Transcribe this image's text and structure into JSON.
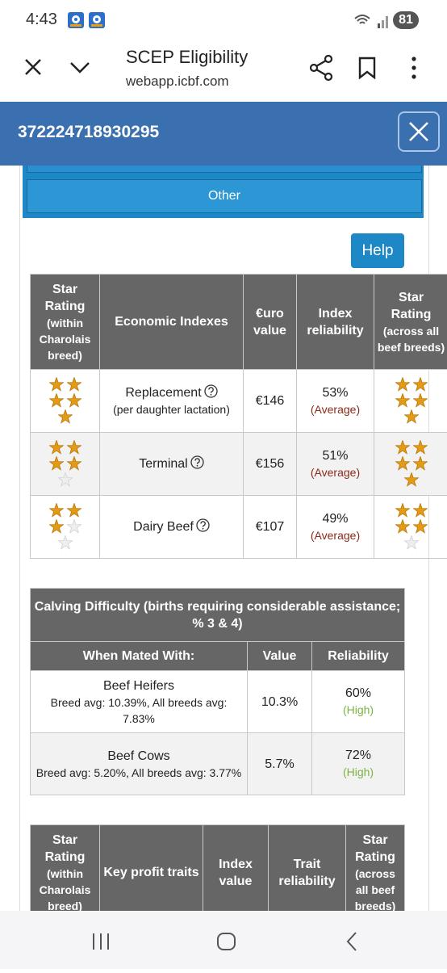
{
  "status": {
    "time": "4:43",
    "battery": "81"
  },
  "browser": {
    "title": "SCEP Eligibility",
    "url": "webapp.icbf.com"
  },
  "header": {
    "id": "372224718930295"
  },
  "tab": "Other",
  "help": "Help",
  "indexes": {
    "headers": [
      {
        "main": "Star Rating",
        "sub": "(within Charolais breed)"
      },
      {
        "main": "Economic Indexes"
      },
      {
        "main": "€uro value"
      },
      {
        "main": "Index reliability"
      },
      {
        "main": "Star Rating",
        "sub": "(across all beef breeds)"
      }
    ],
    "rows": [
      {
        "stars_within": 5,
        "name": "Replacement",
        "note": "(per daughter lactation)",
        "value": "€146",
        "reliability": "53%",
        "reliability_label": "(Average)",
        "stars_across": 5
      },
      {
        "stars_within": 4,
        "name": "Terminal",
        "value": "€156",
        "reliability": "51%",
        "reliability_label": "(Average)",
        "stars_across": 5
      },
      {
        "stars_within": 3,
        "name": "Dairy Beef",
        "value": "€107",
        "reliability": "49%",
        "reliability_label": "(Average)",
        "stars_across": 4
      }
    ]
  },
  "calving": {
    "title": "Calving Difficulty (births requiring considerable assistance; % 3 & 4)",
    "headers": [
      "When Mated With:",
      "Value",
      "Reliability"
    ],
    "rows": [
      {
        "name": "Beef Heifers",
        "note": "Breed avg: 10.39%, All breeds avg: 7.83%",
        "value": "10.3%",
        "reliability": "60%",
        "reliability_label": "(High)"
      },
      {
        "name": "Beef Cows",
        "note": "Breed avg: 5.20%, All breeds avg: 3.77%",
        "value": "5.7%",
        "reliability": "72%",
        "reliability_label": "(High)"
      }
    ]
  },
  "traits": {
    "headers": [
      {
        "main": "Star Rating",
        "sub": "(within Charolais breed)"
      },
      {
        "main": "Key profit traits"
      },
      {
        "main": "Index value"
      },
      {
        "main": "Trait reliability"
      },
      {
        "main": "Star Rating",
        "sub": "(across all beef breeds)"
      }
    ]
  }
}
